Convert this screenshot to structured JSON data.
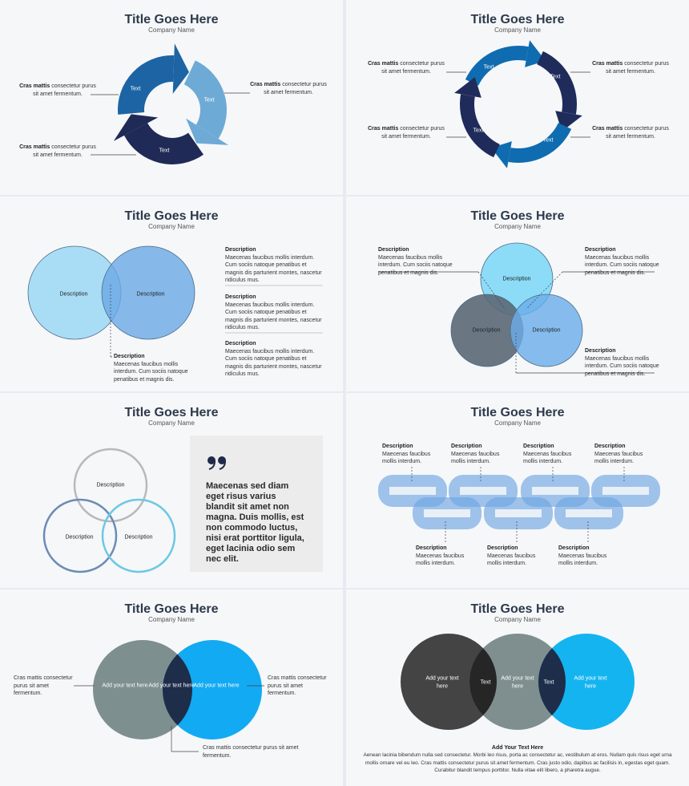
{
  "slides": [
    {
      "title": "Title Goes Here",
      "company": "Company Name",
      "labels": [
        "Text",
        "Text",
        "Text"
      ],
      "notes": [
        {
          "bold": "Cras mattis",
          "text": "consectetur purus sit amet fermentum."
        },
        {
          "bold": "Cras mattis",
          "text": "consectetur purus sit amet fermentum."
        },
        {
          "bold": "Cras mattis",
          "text": "consectetur purus sit amet fermentum."
        }
      ]
    },
    {
      "title": "Title Goes Here",
      "company": "Company Name",
      "labels": [
        "Text",
        "Text",
        "Text",
        "Text"
      ],
      "notes": [
        {
          "bold": "Cras mattis",
          "text": "consectetur purus sit amet fermentum."
        },
        {
          "bold": "Cras mattis",
          "text": "consectetur purus sit amet fermentum."
        },
        {
          "bold": "Cras mattis",
          "text": "consectetur purus sit amet fermentum."
        },
        {
          "bold": "Cras mattis",
          "text": "consectetur purus sit amet fermentum."
        }
      ]
    },
    {
      "title": "Title Goes Here",
      "company": "Company Name",
      "labels": [
        "Description",
        "Description"
      ],
      "callout": {
        "heading": "Description",
        "text": "Maecenas faucibus mollis interdum. Cum sociis natoque penatibus et magnis dis."
      },
      "blocks": [
        {
          "heading": "Description",
          "text": "Maecenas faucibus mollis interdum. Cum sociis natoque penatibus et magnis dis parturient montes, nascetur ridiculus mus."
        },
        {
          "heading": "Description",
          "text": "Maecenas faucibus mollis interdum. Cum sociis natoque penatibus et magnis dis parturient montes, nascetur ridiculus mus."
        },
        {
          "heading": "Description",
          "text": "Maecenas faucibus mollis interdum. Cum sociis natoque penatibus et magnis dis parturient montes, nascetur ridiculus mus."
        }
      ]
    },
    {
      "title": "Title Goes Here",
      "company": "Company Name",
      "labels": [
        "Description",
        "Description",
        "Description"
      ],
      "notes": [
        {
          "heading": "Description",
          "text": "Maecenas faucibus mollis interdum. Cum sociis natoque penatibus et magnis dis."
        },
        {
          "heading": "Description",
          "text": "Maecenas faucibus mollis interdum. Cum sociis natoque penatibus et magnis dis."
        },
        {
          "heading": "Description",
          "text": "Maecenas faucibus mollis interdum. Cum sociis natoque penatibus et magnis dis."
        }
      ]
    },
    {
      "title": "Title Goes Here",
      "company": "Company Name",
      "labels": [
        "Description",
        "Description",
        "Description"
      ],
      "quote": "Maecenas sed diam eget risus varius blandit sit amet non magna. Duis mollis, est non commodo luctus, nisi erat porttitor ligula, eget lacinia odio sem nec elit."
    },
    {
      "title": "Title Goes Here",
      "company": "Company Name",
      "notes": [
        {
          "heading": "Description",
          "text": "Maecenas faucibus mollis interdum."
        },
        {
          "heading": "Description",
          "text": "Maecenas faucibus mollis interdum."
        },
        {
          "heading": "Description",
          "text": "Maecenas faucibus mollis interdum."
        },
        {
          "heading": "Description",
          "text": "Maecenas faucibus mollis interdum."
        },
        {
          "heading": "Description",
          "text": "Maecenas faucibus mollis interdum."
        },
        {
          "heading": "Description",
          "text": "Maecenas faucibus mollis interdum."
        },
        {
          "heading": "Description",
          "text": "Maecenas faucibus mollis interdum."
        }
      ]
    },
    {
      "title": "Title Goes Here",
      "company": "Company Name",
      "labels": [
        "Add your text here",
        "Add your text here",
        "Add your text here"
      ],
      "notes": [
        "Cras mattis consectetur purus sit amet fermentum.",
        "Cras mattis consectetur purus sit amet fermentum.",
        "Cras mattis consectetur purus sit amet fermentum."
      ]
    },
    {
      "title": "Title Goes Here",
      "company": "Company Name",
      "labels": [
        "Add your text here",
        "Add your text here",
        "Add your text here",
        "Text",
        "Text"
      ],
      "heading": "Add Your Text Here",
      "paragraph": "Aenean lacinia bibendum nulla sed consectetur. Morbi leo risus, porta ac consectetur ac, vestibulum at eros. Nullam quis risus eget urna mollis ornare vel eu leo. Cras mattis consectetur purus sit amet fermentum. Cras justo odio, dapibus ac facilisis in, egestas eget quam. Curabitur blandit tempus porttitor. Nulla vitae elit libero, a pharetra augue."
    }
  ]
}
